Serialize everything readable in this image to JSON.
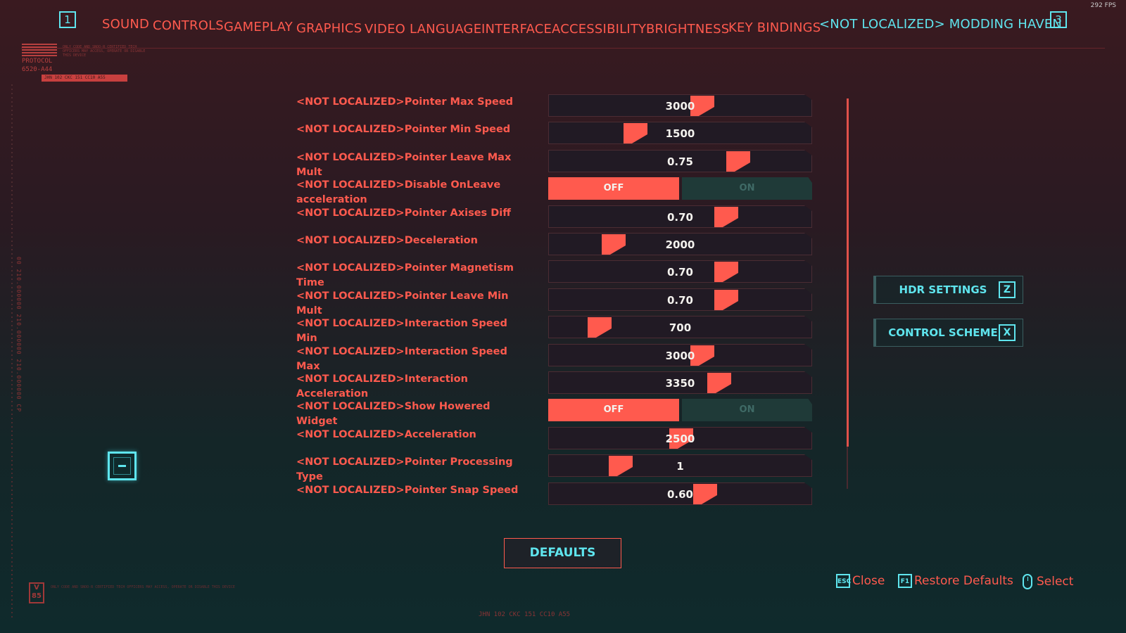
{
  "fps": "292 FPS",
  "nav": {
    "left_key": "1",
    "right_key": "3",
    "tabs": [
      {
        "label": "SOUND"
      },
      {
        "label": "CONTROLS"
      },
      {
        "label": "GAMEPLAY"
      },
      {
        "label": "GRAPHICS"
      },
      {
        "label": "VIDEO"
      },
      {
        "label": "LANGUAGE"
      },
      {
        "label": "INTERFACE"
      },
      {
        "label": "ACCESSIBILITY"
      },
      {
        "label": "BRIGHTNESS"
      },
      {
        "label": "KEY BINDINGS"
      },
      {
        "label": "<NOT LOCALIZED> MODDING HAVEN",
        "active": true
      }
    ]
  },
  "logo": {
    "protocol": "PROTOCOL",
    "code": "6520-A44",
    "fine_print": "ONLY CODE AND SNOO-R CERTIFIED TECH OFFICERS MAY ACCESS, OPERATE OR DISABLE THIS DEVICE",
    "bar_text": "JHN 102 CKC 151 CC10 A55"
  },
  "side_vertical_text": "00 210.000000 210.000000 210.000000 CP",
  "settings": [
    {
      "label": "<NOT LOCALIZED>Pointer Max Speed",
      "type": "slider",
      "value": "3000",
      "fraction": 0.59
    },
    {
      "label": "<NOT LOCALIZED>Pointer Min Speed",
      "type": "slider",
      "value": "1500",
      "fraction": 0.31
    },
    {
      "label": "<NOT LOCALIZED>Pointer Leave Max Mult",
      "type": "slider",
      "value": "0.75",
      "fraction": 0.74
    },
    {
      "label": "<NOT LOCALIZED>Disable OnLeave acceleration",
      "type": "toggle",
      "off": "OFF",
      "on": "ON",
      "state": "off"
    },
    {
      "label": "<NOT LOCALIZED>Pointer Axises Diff",
      "type": "slider",
      "value": "0.70",
      "fraction": 0.69
    },
    {
      "label": "<NOT LOCALIZED>Deceleration",
      "type": "slider",
      "value": "2000",
      "fraction": 0.22
    },
    {
      "label": "<NOT LOCALIZED>Pointer Magnetism Time",
      "type": "slider",
      "value": "0.70",
      "fraction": 0.69
    },
    {
      "label": "<NOT LOCALIZED>Pointer Leave Min Mult",
      "type": "slider",
      "value": "0.70",
      "fraction": 0.69
    },
    {
      "label": "<NOT LOCALIZED>Interaction Speed Min",
      "type": "slider",
      "value": "700",
      "fraction": 0.16
    },
    {
      "label": "<NOT LOCALIZED>Interaction Speed Max",
      "type": "slider",
      "value": "3000",
      "fraction": 0.59
    },
    {
      "label": "<NOT LOCALIZED>Interaction Acceleration",
      "type": "slider",
      "value": "3350",
      "fraction": 0.66
    },
    {
      "label": "<NOT LOCALIZED>Show Howered Widget",
      "type": "toggle",
      "off": "OFF",
      "on": "ON",
      "state": "off"
    },
    {
      "label": "<NOT LOCALIZED>Acceleration",
      "type": "slider",
      "value": "2500",
      "fraction": 0.5
    },
    {
      "label": "<NOT LOCALIZED>Pointer Processing Type",
      "type": "slider",
      "value": "1",
      "fraction": 0.25
    },
    {
      "label": "<NOT LOCALIZED>Pointer Snap Speed",
      "type": "slider",
      "value": "0.60",
      "fraction": 0.6
    }
  ],
  "right_buttons": {
    "hdr": {
      "label": "HDR SETTINGS",
      "key": "Z"
    },
    "scheme": {
      "label": "CONTROL SCHEME",
      "key": "X"
    }
  },
  "defaults_label": "DEFAULTS",
  "hints": {
    "close_key": "ESC",
    "close": "Close",
    "restore_key": "F1",
    "restore": "Restore Defaults",
    "select": "Select"
  },
  "bottom_code": "JHN 102 CKC 151 CC10 A55",
  "badge": "V 85",
  "colors": {
    "accent_red": "#ff5a4e",
    "accent_cyan": "#5fe5ee",
    "toggle_off_bg": "#1f3a38"
  }
}
